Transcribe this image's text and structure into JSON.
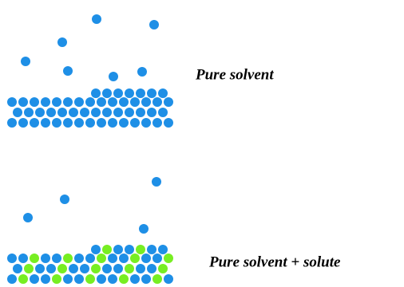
{
  "panels": [
    {
      "label": "Pure solvent"
    },
    {
      "label": "Pure solvent + solute"
    }
  ]
}
